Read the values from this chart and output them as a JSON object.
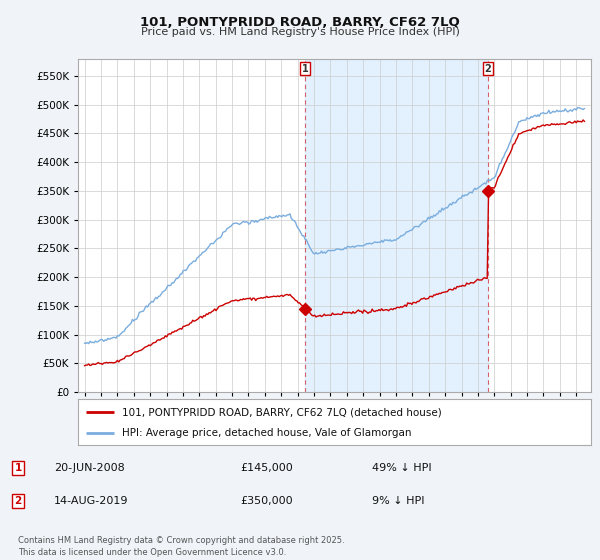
{
  "title": "101, PONTYPRIDD ROAD, BARRY, CF62 7LQ",
  "subtitle": "Price paid vs. HM Land Registry's House Price Index (HPI)",
  "footnote": "Contains HM Land Registry data © Crown copyright and database right 2025.\nThis data is licensed under the Open Government Licence v3.0.",
  "legend_property": "101, PONTYPRIDD ROAD, BARRY, CF62 7LQ (detached house)",
  "legend_hpi": "HPI: Average price, detached house, Vale of Glamorgan",
  "transaction1_date": "20-JUN-2008",
  "transaction1_price": "£145,000",
  "transaction1_hpi": "49% ↓ HPI",
  "transaction2_date": "14-AUG-2019",
  "transaction2_price": "£350,000",
  "transaction2_hpi": "9% ↓ HPI",
  "property_color": "#cc0000",
  "hpi_color": "#7aadde",
  "shade_color": "#ddeeff",
  "background_color": "#f0f4f8",
  "plot_background": "#ffffff",
  "ylim": [
    0,
    580000
  ],
  "yticks": [
    0,
    50000,
    100000,
    150000,
    200000,
    250000,
    300000,
    350000,
    400000,
    450000,
    500000,
    550000
  ],
  "xstart_year": 1995,
  "xend_year": 2025,
  "transaction1_year": 2008.47,
  "transaction2_year": 2019.62,
  "transaction1_price_val": 145000,
  "transaction2_price_val": 350000
}
